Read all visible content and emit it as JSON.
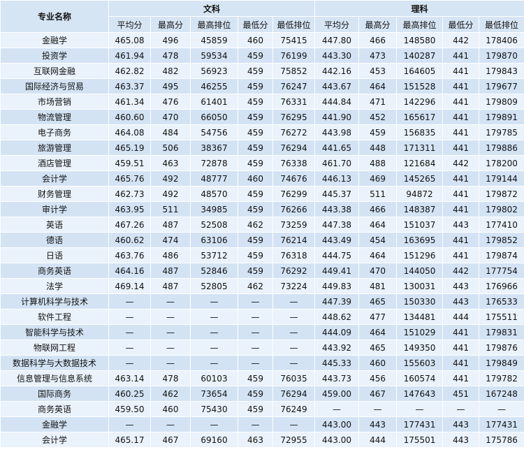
{
  "header": {
    "name": "专业名称",
    "groups": [
      "文科",
      "理科"
    ],
    "columns": [
      "平均分",
      "最高分",
      "最高排位",
      "最低分",
      "最低排位",
      "平均分",
      "最高分",
      "最高排位",
      "最低分",
      "最低排位"
    ]
  },
  "table": {
    "rows": [
      [
        "金融学",
        "465.08",
        "496",
        "45859",
        "460",
        "75415",
        "447.80",
        "466",
        "148580",
        "442",
        "178406"
      ],
      [
        "投资学",
        "461.94",
        "478",
        "59534",
        "459",
        "76199",
        "443.30",
        "473",
        "140287",
        "441",
        "179870"
      ],
      [
        "互联网金融",
        "462.82",
        "482",
        "56923",
        "459",
        "75852",
        "442.16",
        "453",
        "164605",
        "441",
        "179843"
      ],
      [
        "国际经济与贸易",
        "463.37",
        "495",
        "46255",
        "459",
        "76247",
        "443.67",
        "464",
        "151528",
        "441",
        "179677"
      ],
      [
        "市场营销",
        "461.34",
        "476",
        "61401",
        "459",
        "76331",
        "444.84",
        "471",
        "142296",
        "441",
        "179809"
      ],
      [
        "物流管理",
        "460.60",
        "470",
        "66050",
        "459",
        "76295",
        "441.90",
        "452",
        "165617",
        "441",
        "179891"
      ],
      [
        "电子商务",
        "464.08",
        "484",
        "54756",
        "459",
        "76272",
        "443.98",
        "459",
        "156835",
        "441",
        "179785"
      ],
      [
        "旅游管理",
        "465.19",
        "506",
        "38367",
        "459",
        "76294",
        "441.65",
        "448",
        "171311",
        "441",
        "179886"
      ],
      [
        "酒店管理",
        "459.51",
        "463",
        "72878",
        "459",
        "76338",
        "461.70",
        "488",
        "121684",
        "442",
        "178200"
      ],
      [
        "会计学",
        "465.76",
        "492",
        "48777",
        "460",
        "74676",
        "446.13",
        "469",
        "145265",
        "441",
        "179144"
      ],
      [
        "财务管理",
        "462.73",
        "492",
        "48570",
        "459",
        "76299",
        "445.37",
        "511",
        "94872",
        "441",
        "179872"
      ],
      [
        "审计学",
        "463.95",
        "511",
        "34985",
        "459",
        "76266",
        "443.38",
        "466",
        "148387",
        "441",
        "179802"
      ],
      [
        "英语",
        "467.26",
        "487",
        "52508",
        "462",
        "73259",
        "447.38",
        "464",
        "151037",
        "443",
        "177410"
      ],
      [
        "德语",
        "460.62",
        "474",
        "63106",
        "459",
        "76214",
        "443.49",
        "454",
        "163695",
        "441",
        "179852"
      ],
      [
        "日语",
        "463.76",
        "486",
        "53712",
        "459",
        "76318",
        "444.75",
        "464",
        "151296",
        "441",
        "179874"
      ],
      [
        "商务英语",
        "464.16",
        "487",
        "52846",
        "459",
        "76292",
        "449.41",
        "470",
        "144050",
        "442",
        "177754"
      ],
      [
        "法学",
        "469.14",
        "487",
        "52805",
        "462",
        "73224",
        "449.83",
        "481",
        "130031",
        "443",
        "176966"
      ],
      [
        "计算机科学与技术",
        "—",
        "—",
        "—",
        "—",
        "—",
        "447.39",
        "465",
        "150330",
        "443",
        "176533"
      ],
      [
        "软件工程",
        "—",
        "—",
        "—",
        "—",
        "—",
        "448.62",
        "477",
        "134481",
        "444",
        "175511"
      ],
      [
        "智能科学与技术",
        "—",
        "—",
        "—",
        "—",
        "—",
        "444.09",
        "464",
        "151029",
        "441",
        "179831"
      ],
      [
        "物联网工程",
        "—",
        "—",
        "—",
        "—",
        "—",
        "443.92",
        "465",
        "149350",
        "441",
        "179876"
      ],
      [
        "数据科学与大数据技术",
        "—",
        "—",
        "—",
        "—",
        "—",
        "445.33",
        "460",
        "155603",
        "441",
        "179849"
      ],
      [
        "信息管理与信息系统",
        "463.14",
        "478",
        "60103",
        "459",
        "76035",
        "443.73",
        "456",
        "160574",
        "441",
        "179782"
      ],
      [
        "国际商务",
        "460.25",
        "462",
        "73654",
        "459",
        "76294",
        "459.00",
        "467",
        "147643",
        "451",
        "167248"
      ],
      [
        "商务英语",
        "459.50",
        "460",
        "75430",
        "459",
        "76249",
        "—",
        "—",
        "—",
        "—",
        "—"
      ],
      [
        "金融学",
        "—",
        "—",
        "—",
        "—",
        "—",
        "443.00",
        "443",
        "177431",
        "443",
        "177431"
      ],
      [
        "会计学",
        "465.17",
        "467",
        "69160",
        "463",
        "72955",
        "443.00",
        "444",
        "175501",
        "443",
        "175786"
      ]
    ]
  }
}
